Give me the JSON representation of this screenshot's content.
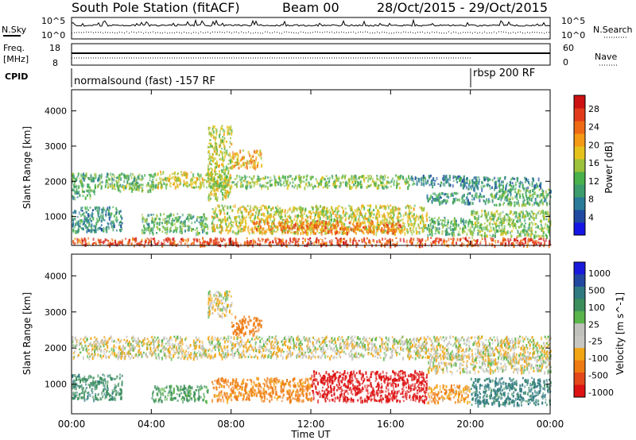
{
  "header": {
    "station": "South Pole Station (fitACF)",
    "beam": "Beam 00",
    "dates": "28/Oct/2015 - 29/Oct/2015"
  },
  "noise_panel": {
    "left_label": "N.Sky",
    "right_label": "N.Search",
    "top_tick": "10^5",
    "bottom_tick": "10^0"
  },
  "freq_panel": {
    "label_line1": "Freq.",
    "label_line2": "[MHz]",
    "ticks": [
      "18",
      "8"
    ],
    "right_label": "Nave",
    "right_ticks": [
      "60",
      "0"
    ]
  },
  "cpid_panel": {
    "label": "CPID",
    "segments": [
      {
        "start_hour": 0,
        "text": "normalsound (fast) -157 RF"
      },
      {
        "start_hour": 20,
        "text": "rbsp 200 RF"
      }
    ]
  },
  "colors": {
    "power": [
      "#1515e6",
      "#1f4aa0",
      "#2a7a9a",
      "#3c9c6c",
      "#49b14b",
      "#9cc13a",
      "#e5c21a",
      "#f59a14",
      "#ee6a14",
      "#e13a1a",
      "#cc1111"
    ],
    "velocity": [
      "#1a1adc",
      "#2248a0",
      "#2f7a80",
      "#3c8f5c",
      "#5ab54a",
      "#c0c0bc",
      "#c8c6c0",
      "#f2a612",
      "#ee7a12",
      "#e4481a",
      "#dd1212"
    ]
  },
  "chart_data": [
    {
      "type": "heatmap",
      "panel": "power",
      "x": [
        "00:00",
        "04:00",
        "08:00",
        "12:00",
        "16:00",
        "20:00",
        "00:00"
      ],
      "xlim": [
        0,
        24
      ],
      "ylabel": "Slant Range [km]",
      "ylim": [
        180,
        4600
      ],
      "yticks": [
        1000,
        2000,
        3000,
        4000
      ],
      "colorbar": {
        "label": "Power [dB]",
        "ticks": [
          4,
          8,
          12,
          16,
          20,
          24,
          28
        ],
        "range": [
          0,
          31
        ]
      },
      "regions": [
        {
          "t0": 0.0,
          "t1": 4.2,
          "r0": 1850,
          "r1": 2250,
          "value": 12
        },
        {
          "t0": 0.0,
          "t1": 1.2,
          "r0": 1550,
          "r1": 1800,
          "value": 11
        },
        {
          "t0": 2.0,
          "t1": 4.5,
          "r0": 1750,
          "r1": 1950,
          "value": 14
        },
        {
          "t0": 4.2,
          "t1": 7.0,
          "r0": 1850,
          "r1": 2300,
          "value": 17
        },
        {
          "t0": 7.0,
          "t1": 17.0,
          "r0": 1850,
          "r1": 2200,
          "value": 14
        },
        {
          "t0": 17.0,
          "t1": 19.8,
          "r0": 1900,
          "r1": 2200,
          "value": 8
        },
        {
          "t0": 19.6,
          "t1": 23.5,
          "r0": 1800,
          "r1": 2150,
          "value": 9
        },
        {
          "t0": 17.8,
          "t1": 21.0,
          "r0": 1400,
          "r1": 1700,
          "value": 9
        },
        {
          "t0": 21.0,
          "t1": 24.0,
          "r0": 1350,
          "r1": 1800,
          "value": 12
        },
        {
          "t0": 0.0,
          "t1": 2.5,
          "r0": 600,
          "r1": 1300,
          "value": 9
        },
        {
          "t0": 3.5,
          "t1": 6.8,
          "r0": 550,
          "r1": 1100,
          "value": 12
        },
        {
          "t0": 7.0,
          "t1": 17.8,
          "r0": 550,
          "r1": 1350,
          "value": 17
        },
        {
          "t0": 9.0,
          "t1": 16.5,
          "r0": 550,
          "r1": 900,
          "value": 23
        },
        {
          "t0": 17.8,
          "t1": 20.0,
          "r0": 500,
          "r1": 1000,
          "value": 12
        },
        {
          "t0": 20.0,
          "t1": 24.0,
          "r0": 450,
          "r1": 1200,
          "value": 14
        },
        {
          "t0": 6.8,
          "t1": 8.0,
          "r0": 1500,
          "r1": 3600,
          "value": 16
        },
        {
          "t0": 8.0,
          "t1": 9.5,
          "r0": 2400,
          "r1": 2900,
          "value": 20
        },
        {
          "t0": 0.0,
          "t1": 24.0,
          "r0": 200,
          "r1": 420,
          "value": 26
        }
      ]
    },
    {
      "type": "heatmap",
      "panel": "velocity",
      "x": [
        "00:00",
        "04:00",
        "08:00",
        "12:00",
        "16:00",
        "20:00",
        "00:00"
      ],
      "xlim": [
        0,
        24
      ],
      "xlabel": "Time UT",
      "ylabel": "Slant Range [km]",
      "ylim": [
        180,
        4600
      ],
      "yticks": [
        1000,
        2000,
        3000,
        4000
      ],
      "colorbar": {
        "label": "Velocity [m s^-1]",
        "ticks": [
          "1000",
          "500",
          "100",
          "25",
          "-25",
          "-100",
          "-500",
          "-1000"
        ]
      },
      "regions": [
        {
          "t0": 0.0,
          "t1": 24.0,
          "r0": 1750,
          "r1": 2350,
          "value": 0
        },
        {
          "t0": 17.8,
          "t1": 24.0,
          "r0": 1350,
          "r1": 1800,
          "value": 0
        },
        {
          "t0": 0.0,
          "t1": 2.5,
          "r0": 600,
          "r1": 1300,
          "value": 200
        },
        {
          "t0": 4.0,
          "t1": 6.8,
          "r0": 550,
          "r1": 1000,
          "value": 150
        },
        {
          "t0": 7.0,
          "t1": 12.0,
          "r0": 550,
          "r1": 1200,
          "value": -150
        },
        {
          "t0": 12.0,
          "t1": 17.8,
          "r0": 550,
          "r1": 1400,
          "value": -600
        },
        {
          "t0": 17.8,
          "t1": 20.0,
          "r0": 500,
          "r1": 1000,
          "value": -100
        },
        {
          "t0": 20.0,
          "t1": 24.0,
          "r0": 450,
          "r1": 1200,
          "value": 300
        },
        {
          "t0": 8.0,
          "t1": 9.5,
          "r0": 2400,
          "r1": 2900,
          "value": -200
        },
        {
          "t0": 6.8,
          "t1": 8.0,
          "r0": 2900,
          "r1": 3600,
          "value": 0
        }
      ]
    }
  ]
}
